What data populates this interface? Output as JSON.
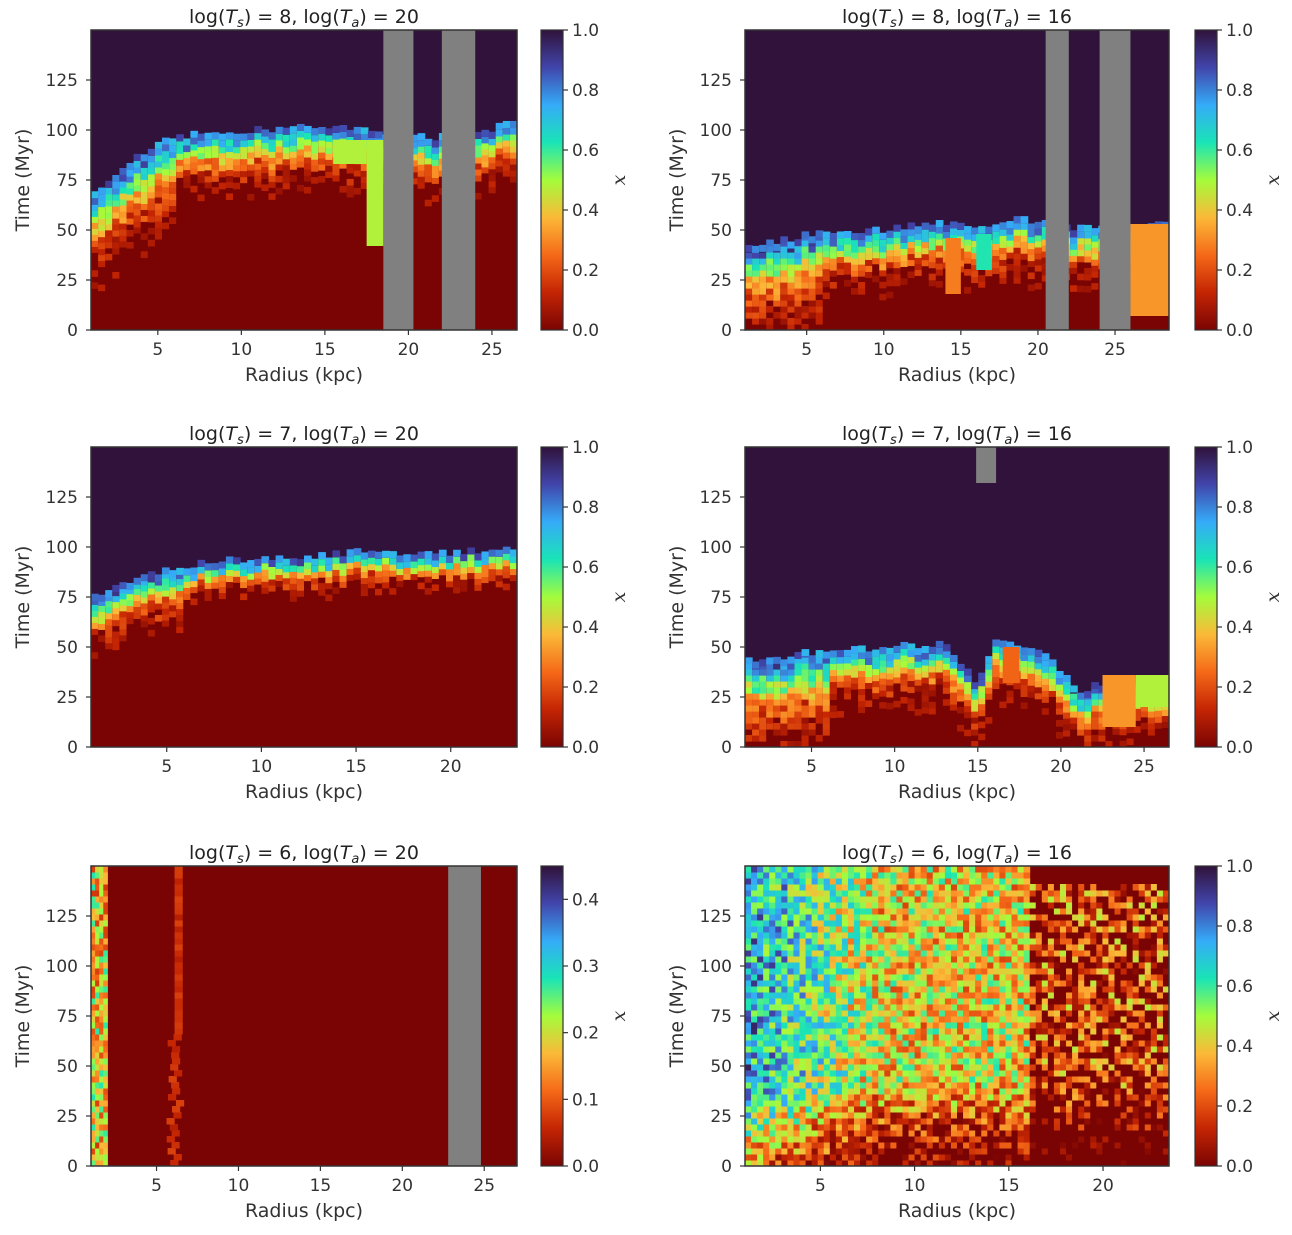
{
  "figure": {
    "colormap_stops": [
      "#7a0403",
      "#c42503",
      "#f56918",
      "#fbb938",
      "#a4fc3c",
      "#1ae4b6",
      "#35abf8",
      "#4145ab",
      "#30123b"
    ],
    "missing_color": "#808080"
  },
  "chart_data": [
    {
      "type": "heatmap",
      "title_parts": {
        "ts_value": "8",
        "ta_value": "20"
      },
      "xlabel": "Radius (kpc)",
      "ylabel": "Time (Myr)",
      "colorbar_label": "x",
      "xlim": [
        1,
        26.5
      ],
      "ylim": [
        0,
        150
      ],
      "xticks": [
        5,
        10,
        15,
        20,
        25
      ],
      "yticks": [
        0,
        25,
        50,
        75,
        100,
        125
      ],
      "clim": [
        0,
        1.0
      ],
      "cticks": [
        "0.0",
        "0.2",
        "0.4",
        "0.6",
        "0.8",
        "1.0"
      ],
      "transition_front_myr": [
        [
          1.5,
          65
        ],
        [
          3,
          80
        ],
        [
          5,
          90
        ],
        [
          8,
          96
        ],
        [
          12,
          97
        ],
        [
          15,
          99
        ],
        [
          17,
          97
        ],
        [
          21,
          93
        ],
        [
          23.5,
          93
        ],
        [
          26.5,
          101
        ]
      ],
      "missing_bands_kpc": [
        [
          18.5,
          20.3
        ],
        [
          22,
          24
        ]
      ],
      "flat_blocks": [
        {
          "x": [
            15.5,
            17.5
          ],
          "y": [
            83,
            95
          ],
          "value": 0.48
        },
        {
          "x": [
            17.5,
            18.5
          ],
          "y": [
            42,
            95
          ],
          "value": 0.48
        }
      ]
    },
    {
      "type": "heatmap",
      "title_parts": {
        "ts_value": "8",
        "ta_value": "16"
      },
      "xlabel": "Radius (kpc)",
      "ylabel": "Time (Myr)",
      "colorbar_label": "x",
      "xlim": [
        1,
        28.5
      ],
      "ylim": [
        0,
        150
      ],
      "xticks": [
        5,
        10,
        15,
        20,
        25
      ],
      "yticks": [
        0,
        25,
        50,
        75,
        100,
        125
      ],
      "clim": [
        0,
        1.0
      ],
      "cticks": [
        "0.0",
        "0.2",
        "0.4",
        "0.6",
        "0.8",
        "1.0"
      ],
      "transition_front_myr": [
        [
          1.5,
          38
        ],
        [
          5,
          44
        ],
        [
          10,
          47
        ],
        [
          13,
          50
        ],
        [
          16,
          48
        ],
        [
          19,
          52
        ],
        [
          22,
          48
        ],
        [
          26.5,
          48
        ],
        [
          28.5,
          52
        ]
      ],
      "missing_bands_kpc": [
        [
          20.5,
          22
        ],
        [
          24,
          26
        ]
      ],
      "flat_blocks": [
        {
          "x": [
            26,
            28.5
          ],
          "y": [
            7,
            53
          ],
          "value": 0.32
        },
        {
          "x": [
            16,
            17
          ],
          "y": [
            30,
            48
          ],
          "value": 0.62
        },
        {
          "x": [
            14,
            15
          ],
          "y": [
            18,
            46
          ],
          "value": 0.28
        }
      ]
    },
    {
      "type": "heatmap",
      "title_parts": {
        "ts_value": "7",
        "ta_value": "20"
      },
      "xlabel": "Radius (kpc)",
      "ylabel": "Time (Myr)",
      "colorbar_label": "x",
      "xlim": [
        1,
        23.5
      ],
      "ylim": [
        0,
        150
      ],
      "xticks": [
        5,
        10,
        15,
        20
      ],
      "yticks": [
        0,
        25,
        50,
        75,
        100,
        125
      ],
      "clim": [
        0,
        1.0
      ],
      "cticks": [
        "0.0",
        "0.2",
        "0.4",
        "0.6",
        "0.8",
        "1.0"
      ],
      "transition_front_myr": [
        [
          1.5,
          72
        ],
        [
          3,
          80
        ],
        [
          5,
          86
        ],
        [
          8,
          90
        ],
        [
          12,
          92
        ],
        [
          16,
          95
        ],
        [
          18,
          93
        ],
        [
          20,
          94
        ],
        [
          23.5,
          97
        ]
      ],
      "missing_bands_kpc": [],
      "flat_blocks": []
    },
    {
      "type": "heatmap",
      "title_parts": {
        "ts_value": "7",
        "ta_value": "16"
      },
      "xlabel": "Radius (kpc)",
      "ylabel": "Time (Myr)",
      "colorbar_label": "x",
      "xlim": [
        1,
        26.5
      ],
      "ylim": [
        0,
        150
      ],
      "xticks": [
        5,
        10,
        15,
        20,
        25
      ],
      "yticks": [
        0,
        25,
        50,
        75,
        100,
        125
      ],
      "clim": [
        0,
        1.0
      ],
      "cticks": [
        "0.0",
        "0.2",
        "0.4",
        "0.6",
        "0.8",
        "1.0"
      ],
      "transition_front_myr": [
        [
          1.5,
          40
        ],
        [
          5,
          44
        ],
        [
          10,
          47
        ],
        [
          13,
          48
        ],
        [
          15,
          28
        ],
        [
          16,
          50
        ],
        [
          19,
          44
        ],
        [
          21,
          24
        ],
        [
          23,
          30
        ],
        [
          26.5,
          30
        ]
      ],
      "missing_bands_kpc": [],
      "missing_blocks": [
        {
          "x": [
            14.9,
            16.1
          ],
          "y": [
            132,
            150
          ]
        }
      ],
      "flat_blocks": [
        {
          "x": [
            22.5,
            24.5
          ],
          "y": [
            10,
            36
          ],
          "value": 0.32
        },
        {
          "x": [
            24.5,
            26.5
          ],
          "y": [
            20,
            36
          ],
          "value": 0.48
        },
        {
          "x": [
            16.5,
            17.5
          ],
          "y": [
            32,
            50
          ],
          "value": 0.24
        }
      ]
    },
    {
      "type": "heatmap",
      "title_parts": {
        "ts_value": "6",
        "ta_value": "20"
      },
      "xlabel": "Radius (kpc)",
      "ylabel": "Time (Myr)",
      "colorbar_label": "x",
      "xlim": [
        1,
        27
      ],
      "ylim": [
        0,
        150
      ],
      "xticks": [
        5,
        10,
        15,
        20,
        25
      ],
      "yticks": [
        0,
        25,
        50,
        75,
        100,
        125
      ],
      "clim": [
        0,
        0.45
      ],
      "cticks": [
        "0.0",
        "0.1",
        "0.2",
        "0.3",
        "0.4"
      ],
      "missing_bands_kpc": [
        [
          22.8,
          24.8
        ]
      ],
      "flat_blocks": []
    },
    {
      "type": "heatmap",
      "title_parts": {
        "ts_value": "6",
        "ta_value": "16"
      },
      "xlabel": "Radius (kpc)",
      "ylabel": "Time (Myr)",
      "colorbar_label": "x",
      "xlim": [
        1,
        23.5
      ],
      "ylim": [
        0,
        150
      ],
      "xticks": [
        5,
        10,
        15,
        20
      ],
      "yticks": [
        0,
        25,
        50,
        75,
        100,
        125
      ],
      "clim": [
        0,
        1.0
      ],
      "cticks": [
        "0.0",
        "0.2",
        "0.4",
        "0.6",
        "0.8",
        "1.0"
      ],
      "missing_bands_kpc": [],
      "flat_blocks": []
    }
  ]
}
